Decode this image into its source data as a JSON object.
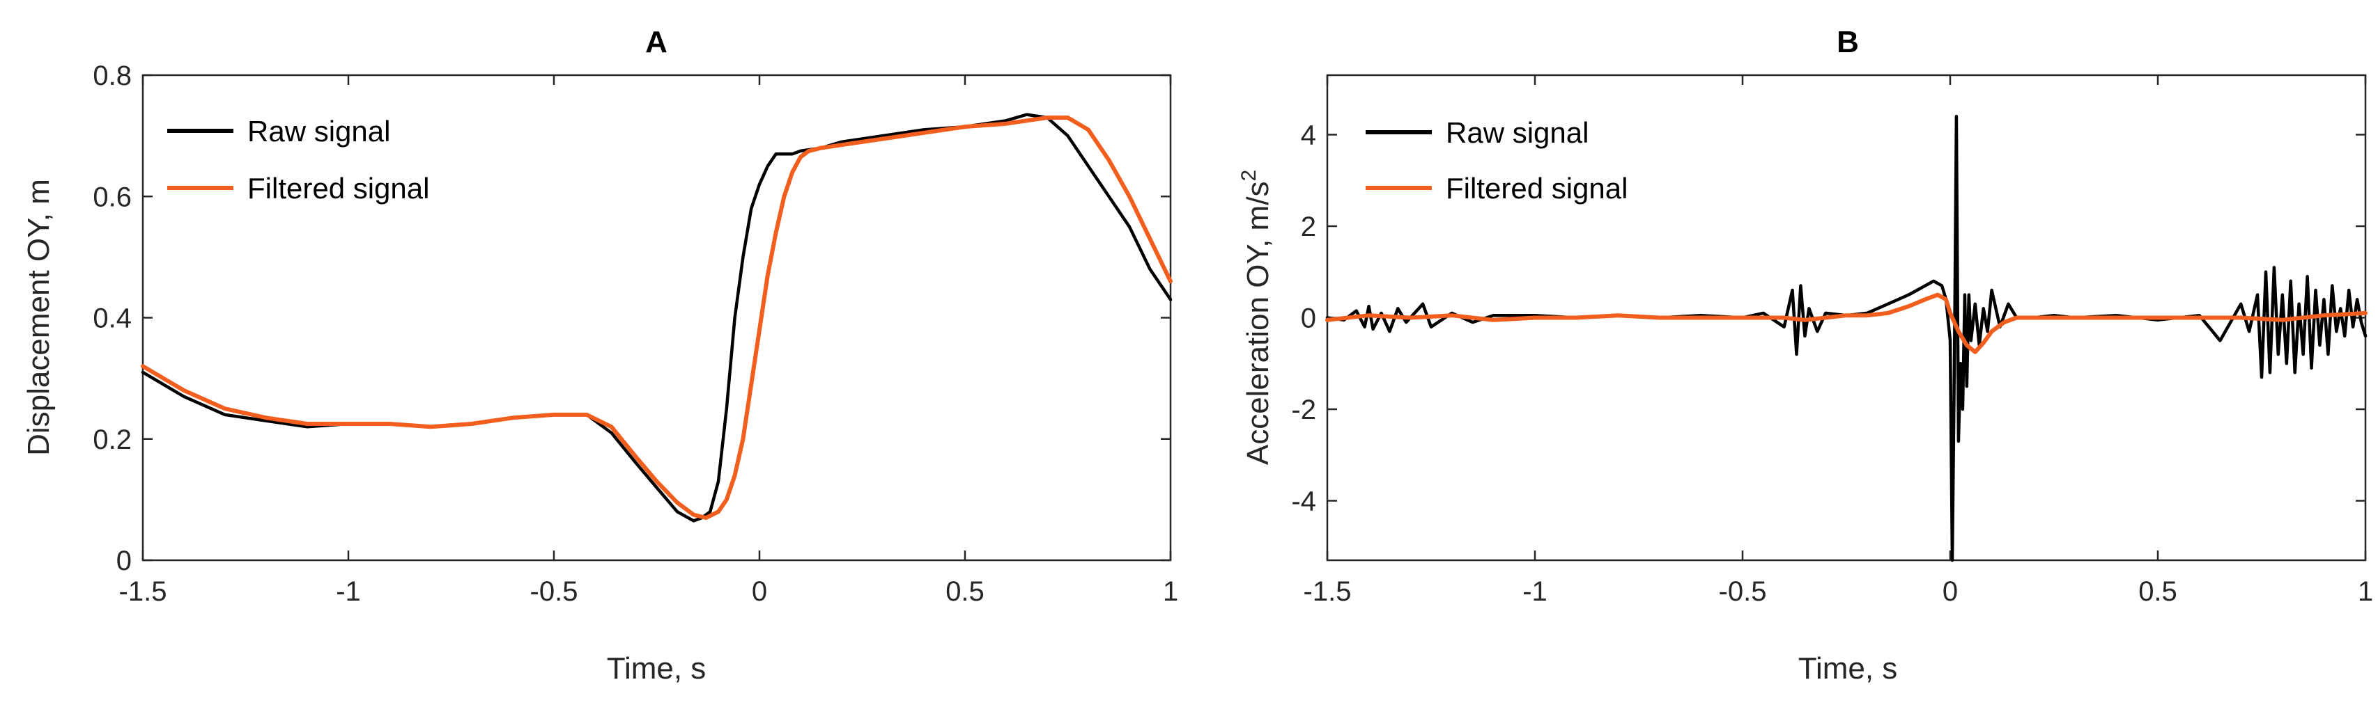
{
  "colors": {
    "raw": "#000000",
    "filtered": "#F25E1E",
    "axis": "#262626",
    "background": "#FFFFFF"
  },
  "chart_data": [
    {
      "type": "line",
      "title": "A",
      "xlabel": "Time, s",
      "ylabel": "Displacement OY, m",
      "xlim": [
        -1.5,
        1
      ],
      "ylim": [
        0,
        0.8
      ],
      "xticks": [
        -1.5,
        -1,
        -0.5,
        0,
        0.5,
        1
      ],
      "xtick_labels": [
        "-1.5",
        "-1",
        "-0.5",
        "0",
        "0.5",
        "1"
      ],
      "yticks": [
        0,
        0.2,
        0.4,
        0.6,
        0.8
      ],
      "ytick_labels": [
        "0",
        "0.2",
        "0.4",
        "0.6",
        "0.8"
      ],
      "legend": {
        "position": "top-left",
        "entries": [
          "Raw signal",
          "Filtered signal"
        ]
      },
      "series": [
        {
          "name": "Raw signal",
          "color": "#000000",
          "x": [
            -1.5,
            -1.4,
            -1.3,
            -1.2,
            -1.1,
            -1.0,
            -0.9,
            -0.8,
            -0.7,
            -0.6,
            -0.5,
            -0.42,
            -0.36,
            -0.3,
            -0.25,
            -0.2,
            -0.16,
            -0.14,
            -0.12,
            -0.1,
            -0.08,
            -0.06,
            -0.04,
            -0.02,
            0.0,
            0.02,
            0.04,
            0.06,
            0.08,
            0.1,
            0.15,
            0.2,
            0.3,
            0.4,
            0.5,
            0.6,
            0.65,
            0.7,
            0.75,
            0.8,
            0.85,
            0.9,
            0.95,
            1.0
          ],
          "y": [
            0.31,
            0.27,
            0.24,
            0.23,
            0.22,
            0.225,
            0.225,
            0.22,
            0.225,
            0.235,
            0.24,
            0.24,
            0.21,
            0.16,
            0.12,
            0.08,
            0.065,
            0.07,
            0.08,
            0.13,
            0.25,
            0.4,
            0.5,
            0.58,
            0.62,
            0.65,
            0.67,
            0.67,
            0.67,
            0.675,
            0.68,
            0.69,
            0.7,
            0.71,
            0.715,
            0.725,
            0.735,
            0.73,
            0.7,
            0.65,
            0.6,
            0.55,
            0.48,
            0.43
          ]
        },
        {
          "name": "Filtered signal",
          "color": "#F25E1E",
          "x": [
            -1.5,
            -1.4,
            -1.3,
            -1.2,
            -1.1,
            -1.0,
            -0.9,
            -0.8,
            -0.7,
            -0.6,
            -0.5,
            -0.42,
            -0.36,
            -0.3,
            -0.25,
            -0.2,
            -0.16,
            -0.13,
            -0.1,
            -0.08,
            -0.06,
            -0.04,
            -0.02,
            0.0,
            0.02,
            0.04,
            0.06,
            0.08,
            0.1,
            0.12,
            0.15,
            0.2,
            0.3,
            0.4,
            0.5,
            0.6,
            0.7,
            0.75,
            0.8,
            0.85,
            0.9,
            0.95,
            1.0
          ],
          "y": [
            0.32,
            0.28,
            0.25,
            0.235,
            0.225,
            0.225,
            0.225,
            0.22,
            0.225,
            0.235,
            0.24,
            0.24,
            0.22,
            0.17,
            0.13,
            0.095,
            0.075,
            0.07,
            0.08,
            0.1,
            0.14,
            0.2,
            0.29,
            0.38,
            0.47,
            0.54,
            0.6,
            0.64,
            0.665,
            0.675,
            0.68,
            0.685,
            0.695,
            0.705,
            0.715,
            0.72,
            0.73,
            0.73,
            0.71,
            0.66,
            0.6,
            0.53,
            0.46
          ]
        }
      ]
    },
    {
      "type": "line",
      "title": "B",
      "xlabel": "Time, s",
      "ylabel": "Acceleration OY, m/s",
      "ylabel_superscript": "2",
      "xlim": [
        -1.5,
        1
      ],
      "ylim": [
        -5.3,
        5.3
      ],
      "xticks": [
        -1.5,
        -1,
        -0.5,
        0,
        0.5,
        1
      ],
      "xtick_labels": [
        "-1.5",
        "-1",
        "-0.5",
        "0",
        "0.5",
        "1"
      ],
      "yticks": [
        -4,
        -2,
        0,
        2,
        4
      ],
      "ytick_labels": [
        "-4",
        "-2",
        "0",
        "2",
        "4"
      ],
      "legend": {
        "position": "top-left",
        "entries": [
          "Raw signal",
          "Filtered signal"
        ]
      },
      "series": [
        {
          "name": "Raw signal",
          "color": "#000000",
          "x": [
            -1.5,
            -1.46,
            -1.43,
            -1.41,
            -1.4,
            -1.39,
            -1.37,
            -1.35,
            -1.33,
            -1.31,
            -1.29,
            -1.27,
            -1.25,
            -1.2,
            -1.15,
            -1.1,
            -1.0,
            -0.9,
            -0.8,
            -0.7,
            -0.6,
            -0.5,
            -0.45,
            -0.4,
            -0.38,
            -0.37,
            -0.36,
            -0.35,
            -0.34,
            -0.32,
            -0.3,
            -0.25,
            -0.2,
            -0.15,
            -0.1,
            -0.06,
            -0.04,
            -0.02,
            -0.01,
            0.0,
            0.005,
            0.01,
            0.015,
            0.02,
            0.025,
            0.03,
            0.035,
            0.04,
            0.045,
            0.05,
            0.06,
            0.07,
            0.08,
            0.09,
            0.1,
            0.12,
            0.14,
            0.16,
            0.2,
            0.25,
            0.3,
            0.4,
            0.5,
            0.6,
            0.65,
            0.7,
            0.72,
            0.74,
            0.75,
            0.76,
            0.77,
            0.78,
            0.79,
            0.8,
            0.81,
            0.82,
            0.83,
            0.84,
            0.85,
            0.86,
            0.87,
            0.88,
            0.89,
            0.9,
            0.91,
            0.92,
            0.93,
            0.94,
            0.95,
            0.96,
            0.97,
            0.98,
            0.99,
            1.0
          ],
          "y": [
            0.0,
            -0.05,
            0.15,
            -0.2,
            0.25,
            -0.25,
            0.1,
            -0.3,
            0.2,
            -0.1,
            0.1,
            0.3,
            -0.2,
            0.1,
            -0.1,
            0.05,
            0.05,
            0.0,
            0.05,
            0.0,
            0.05,
            0.0,
            0.1,
            -0.2,
            0.6,
            -0.8,
            0.7,
            -0.4,
            0.2,
            -0.3,
            0.1,
            0.05,
            0.1,
            0.3,
            0.5,
            0.7,
            0.8,
            0.7,
            0.4,
            -0.5,
            -5.3,
            -1.0,
            4.4,
            -2.7,
            -1.0,
            -2.0,
            0.5,
            -1.5,
            0.5,
            -0.5,
            0.3,
            -0.6,
            0.2,
            -0.3,
            0.6,
            -0.2,
            0.3,
            0.0,
            0.0,
            0.05,
            0.0,
            0.05,
            -0.05,
            0.05,
            -0.5,
            0.3,
            -0.3,
            0.5,
            -1.3,
            1.0,
            -1.2,
            1.1,
            -0.8,
            0.5,
            -1.0,
            0.8,
            -1.2,
            0.3,
            -0.8,
            0.9,
            -1.1,
            0.6,
            -0.6,
            0.4,
            -0.8,
            0.7,
            -0.3,
            0.2,
            -0.4,
            0.6,
            -0.2,
            0.4,
            -0.1,
            -0.4
          ]
        },
        {
          "name": "Filtered signal",
          "color": "#F25E1E",
          "x": [
            -1.5,
            -1.4,
            -1.3,
            -1.2,
            -1.1,
            -1.0,
            -0.9,
            -0.8,
            -0.7,
            -0.6,
            -0.5,
            -0.4,
            -0.35,
            -0.3,
            -0.25,
            -0.2,
            -0.15,
            -0.1,
            -0.06,
            -0.03,
            -0.01,
            0.0,
            0.02,
            0.04,
            0.06,
            0.08,
            0.1,
            0.13,
            0.16,
            0.2,
            0.3,
            0.4,
            0.5,
            0.6,
            0.7,
            0.8,
            0.9,
            1.0
          ],
          "y": [
            -0.05,
            0.05,
            0.0,
            0.05,
            -0.05,
            0.0,
            0.0,
            0.05,
            0.0,
            0.0,
            0.0,
            0.0,
            -0.05,
            0.0,
            0.05,
            0.05,
            0.1,
            0.25,
            0.4,
            0.5,
            0.4,
            0.1,
            -0.3,
            -0.6,
            -0.75,
            -0.55,
            -0.3,
            -0.1,
            0.0,
            0.0,
            0.0,
            0.0,
            0.0,
            0.0,
            0.0,
            -0.05,
            0.05,
            0.1
          ]
        }
      ]
    }
  ]
}
